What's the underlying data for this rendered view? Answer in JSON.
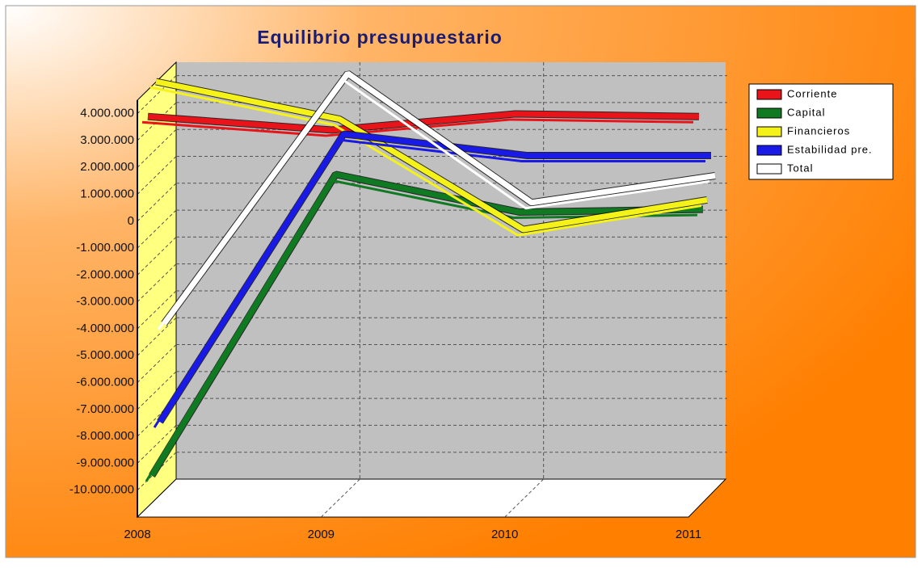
{
  "chart_data": {
    "type": "line",
    "title": "Equilibrio presupuestario",
    "categories": [
      "2008",
      "2009",
      "2010",
      "2011"
    ],
    "series": [
      {
        "name": "Corriente",
        "color": "#e8141a",
        "values": [
          3500000,
          3000000,
          3600000,
          3500000
        ]
      },
      {
        "name": "Capital",
        "color": "#107a22",
        "values": [
          -10000000,
          1200000,
          -200000,
          -100000
        ]
      },
      {
        "name": "Financieros",
        "color": "#f5f21a",
        "values": [
          4500000,
          3100000,
          -1000000,
          100000
        ]
      },
      {
        "name": "Estabilidad pre.",
        "color": "#1a1ae6",
        "values": [
          -8300000,
          2400000,
          1600000,
          1600000
        ]
      },
      {
        "name": "Total",
        "color": "#ffffff",
        "values": [
          -4800000,
          4500000,
          -300000,
          700000
        ]
      }
    ],
    "ylim": [
      -11000000,
      4500000
    ],
    "yticks": [
      {
        "value": 4000000,
        "label": "4.000.000"
      },
      {
        "value": 3000000,
        "label": "3.000.000"
      },
      {
        "value": 2000000,
        "label": "2.000.000"
      },
      {
        "value": 1000000,
        "label": "1.000.000"
      },
      0,
      {
        "value": -1000000,
        "label": "-1.000.000"
      },
      {
        "value": -2000000,
        "label": "-2.000.000"
      },
      {
        "value": -3000000,
        "label": "-3.000.000"
      },
      {
        "value": -4000000,
        "label": "-4.000.000"
      },
      {
        "value": -5000000,
        "label": "-5.000.000"
      },
      {
        "value": -6000000,
        "label": "-6.000.000"
      },
      {
        "value": -7000000,
        "label": "-7.000.000"
      },
      {
        "value": -8000000,
        "label": "-8.000.000"
      },
      {
        "value": -9000000,
        "label": "-9.000.000"
      },
      {
        "value": -10000000,
        "label": "-10.000.000"
      }
    ],
    "grid": true,
    "legend": "upper right"
  }
}
